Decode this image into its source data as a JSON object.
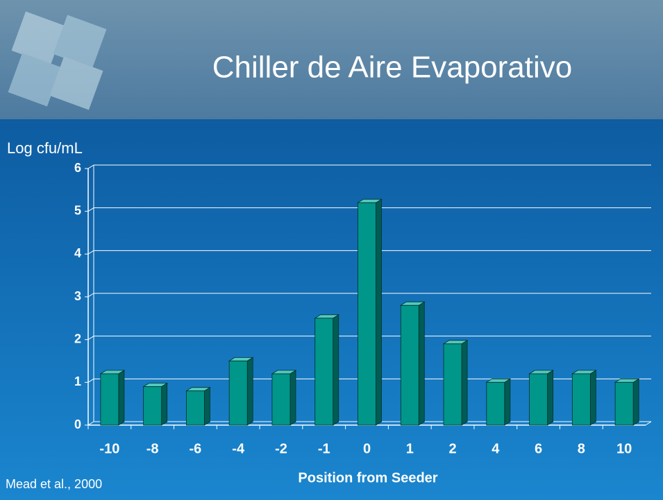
{
  "chart_data": {
    "type": "bar",
    "title": "Chiller de Aire Evaporativo",
    "y_label": "Log cfu/mL",
    "x_label": "Position from Seeder",
    "source": "Mead et al., 2000",
    "categories": [
      "-10",
      "-8",
      "-6",
      "-4",
      "-2",
      "-1",
      "0",
      "1",
      "2",
      "4",
      "6",
      "8",
      "10"
    ],
    "values": [
      1.2,
      0.9,
      0.8,
      1.5,
      1.2,
      2.5,
      5.2,
      2.8,
      1.9,
      1.0,
      1.2,
      1.2,
      1.0
    ],
    "color": "#00968a",
    "ylim": [
      0,
      6
    ],
    "yticks": [
      0,
      1,
      2,
      3,
      4,
      5,
      6
    ],
    "grid": true
  }
}
